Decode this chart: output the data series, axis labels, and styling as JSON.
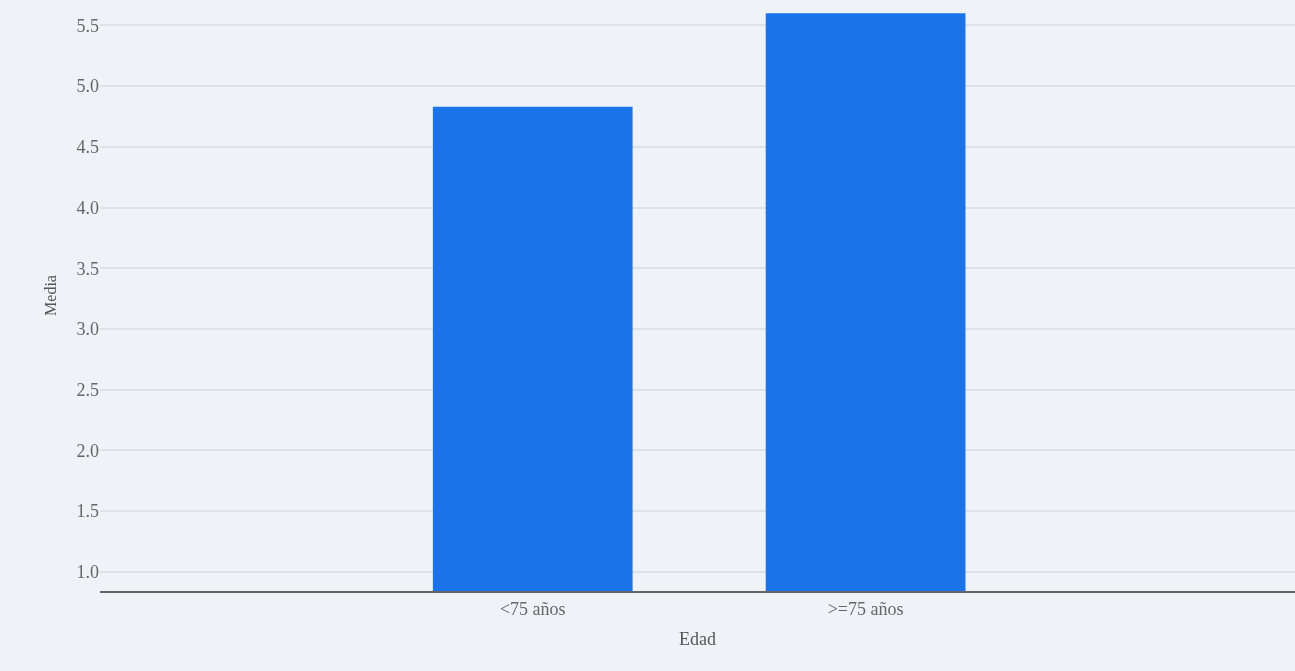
{
  "chart_data": {
    "type": "bar",
    "xlabel": "Edad",
    "ylabel": "Media",
    "categories": [
      "<75 años",
      ">=75 años"
    ],
    "values": [
      4.83,
      5.6
    ],
    "color": "#1a73e8",
    "ylim": [
      0.84,
      5.71
    ],
    "yticks": [
      {
        "value": 1,
        "label": "1.0"
      },
      1.5,
      {
        "value": 2,
        "label": "2.0"
      },
      2.5,
      {
        "value": 3,
        "label": "3.0"
      },
      3.5,
      {
        "value": 4,
        "label": "4.0"
      },
      4.5,
      {
        "value": 5,
        "label": "5.0"
      },
      5.5
    ],
    "grid": "y"
  }
}
